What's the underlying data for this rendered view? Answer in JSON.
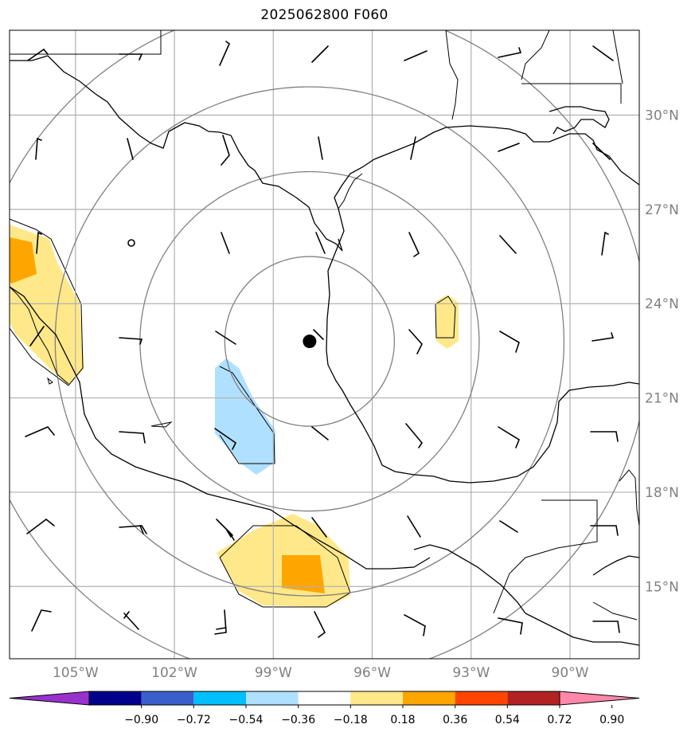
{
  "title": "2025062800 F060",
  "map": {
    "lon_range": [
      -107,
      -87.9
    ],
    "lat_range": [
      12.7,
      32.7
    ],
    "lon_ticks": [
      {
        "value": -105,
        "label": "105°W"
      },
      {
        "value": -102,
        "label": "102°W"
      },
      {
        "value": -99,
        "label": "99°W"
      },
      {
        "value": -96,
        "label": "96°W"
      },
      {
        "value": -93,
        "label": "93°W"
      },
      {
        "value": -90,
        "label": "90°W"
      }
    ],
    "lat_ticks": [
      {
        "value": 15,
        "label": "15°N"
      },
      {
        "value": 18,
        "label": "18°N"
      },
      {
        "value": 21,
        "label": "21°N"
      },
      {
        "value": 24,
        "label": "24°N"
      },
      {
        "value": 27,
        "label": "27°N"
      },
      {
        "value": 30,
        "label": "30°N"
      }
    ],
    "center": {
      "lon": -97.9,
      "lat": 22.8
    },
    "range_rings_deg": [
      2.7,
      5.4,
      8.1,
      10.8
    ],
    "colors": {
      "gridline": "#b0b0b0",
      "ring": "#808080",
      "coast": "#000000",
      "center_marker": "#000000"
    }
  },
  "colorbar": {
    "colors": [
      "#9932cc",
      "#00008b",
      "#3a5fcd",
      "#00bfff",
      "#b0e0ff",
      "#ffffff",
      "#ffe88a",
      "#ffa500",
      "#ff4500",
      "#b22222",
      "#ff88aa"
    ],
    "tick_labels": [
      "−0.90",
      "−0.72",
      "−0.54",
      "−0.36",
      "−0.18",
      "0.18",
      "0.36",
      "0.54",
      "0.72",
      "0.90"
    ]
  }
}
